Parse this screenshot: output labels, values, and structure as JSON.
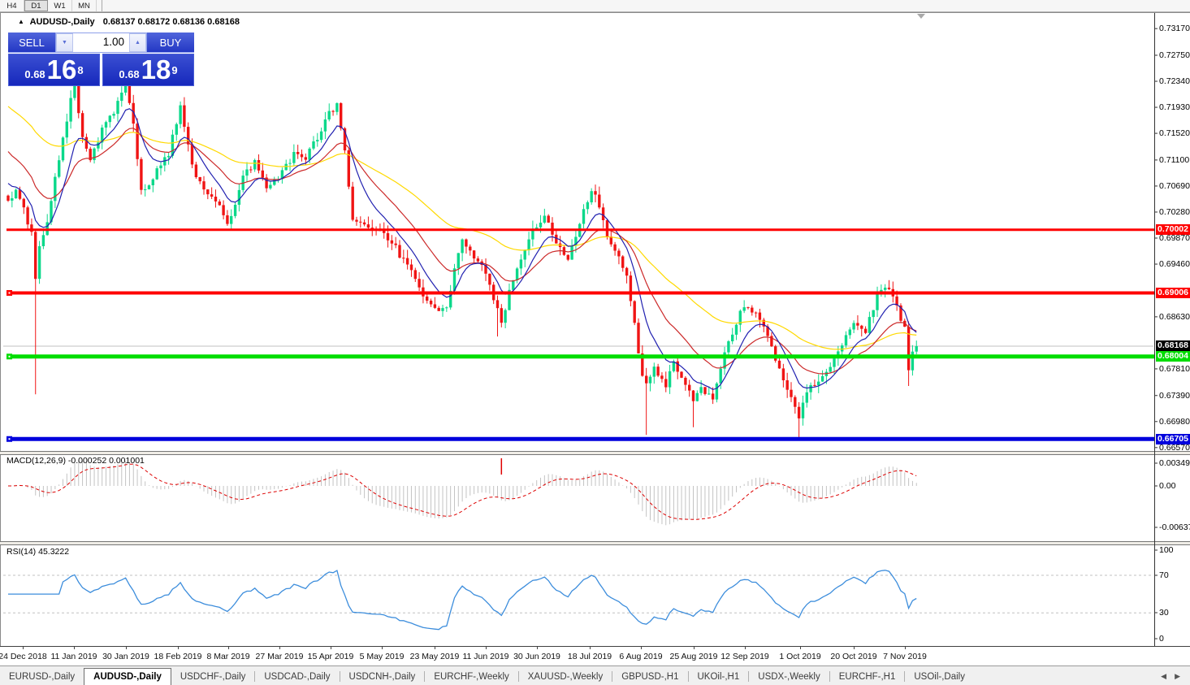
{
  "toolbar": {
    "periods": [
      "H4",
      "D1",
      "W1",
      "MN"
    ],
    "active_period": "D1"
  },
  "chart": {
    "symbol_line": {
      "title": "AUDUSD-,Daily",
      "ohlc": "0.68137 0.68172 0.68136 0.68168"
    },
    "trade_panel": {
      "sell_label": "SELL",
      "buy_label": "BUY",
      "volume": "1.00",
      "sell_price": {
        "prefix": "0.68",
        "big": "16",
        "sup": "8"
      },
      "buy_price": {
        "prefix": "0.68",
        "big": "18",
        "sup": "9"
      }
    }
  },
  "chart_data": {
    "type": "candlestick",
    "symbol": "AUDUSD",
    "timeframe": "Daily",
    "quote": {
      "open": 0.68137,
      "high": 0.68172,
      "low": 0.68136,
      "close": 0.68168
    },
    "candle_count": 233,
    "colors": {
      "bull": "#0bd88a",
      "bear": "#f01414",
      "current_line": "#c0c0c0"
    },
    "x_axis_dates": [
      "24 Dec 2018",
      "11 Jan 2019",
      "30 Jan 2019",
      "18 Feb 2019",
      "8 Mar 2019",
      "27 Mar 2019",
      "15 Apr 2019",
      "5 May 2019",
      "23 May 2019",
      "11 Jun 2019",
      "30 Jun 2019",
      "18 Jul 2019",
      "6 Aug 2019",
      "25 Aug 2019",
      "12 Sep 2019",
      "1 Oct 2019",
      "20 Oct 2019",
      "7 Nov 2019"
    ],
    "y_axis_ticks": [
      0.7317,
      0.7275,
      0.7234,
      0.7193,
      0.7152,
      0.711,
      0.7069,
      0.7028,
      0.6987,
      0.6946,
      0.6863,
      0.6781,
      0.6739,
      0.6698,
      0.6657
    ],
    "price_levels": [
      {
        "value": 0.70002,
        "color": "#ff0000",
        "width": 3,
        "handle": false
      },
      {
        "value": 0.69006,
        "color": "#ff0000",
        "width": 4,
        "handle": true
      },
      {
        "value": 0.68004,
        "color": "#00dd00",
        "width": 5,
        "handle": true
      },
      {
        "value": 0.66705,
        "color": "#0000dd",
        "width": 5,
        "handle": true
      }
    ],
    "current_price": 0.68168,
    "price_path": [
      [
        0,
        0.7046
      ],
      [
        2,
        0.7062
      ],
      [
        4,
        0.703
      ],
      [
        5,
        0.701
      ],
      [
        6,
        0.7
      ],
      [
        7,
        0.692
      ],
      [
        8,
        0.6975
      ],
      [
        10,
        0.701
      ],
      [
        12,
        0.7085
      ],
      [
        14,
        0.714
      ],
      [
        16,
        0.7205
      ],
      [
        17,
        0.7228
      ],
      [
        19,
        0.715
      ],
      [
        21,
        0.7108
      ],
      [
        24,
        0.716
      ],
      [
        27,
        0.7185
      ],
      [
        30,
        0.723
      ],
      [
        32,
        0.717
      ],
      [
        34,
        0.7062
      ],
      [
        36,
        0.707
      ],
      [
        38,
        0.7095
      ],
      [
        41,
        0.712
      ],
      [
        44,
        0.7195
      ],
      [
        46,
        0.713
      ],
      [
        48,
        0.7085
      ],
      [
        51,
        0.706
      ],
      [
        54,
        0.704
      ],
      [
        56,
        0.7012
      ],
      [
        58,
        0.704
      ],
      [
        60,
        0.7085
      ],
      [
        63,
        0.7105
      ],
      [
        66,
        0.7068
      ],
      [
        69,
        0.7082
      ],
      [
        73,
        0.712
      ],
      [
        76,
        0.7112
      ],
      [
        79,
        0.7145
      ],
      [
        82,
        0.7185
      ],
      [
        84,
        0.7195
      ],
      [
        86,
        0.712
      ],
      [
        88,
        0.702
      ],
      [
        91,
        0.7005
      ],
      [
        95,
        0.6995
      ],
      [
        98,
        0.6982
      ],
      [
        100,
        0.696
      ],
      [
        103,
        0.6938
      ],
      [
        106,
        0.6898
      ],
      [
        108,
        0.6878
      ],
      [
        110,
        0.6872
      ],
      [
        112,
        0.6882
      ],
      [
        114,
        0.6935
      ],
      [
        116,
        0.6988
      ],
      [
        119,
        0.6958
      ],
      [
        122,
        0.6933
      ],
      [
        125,
        0.6875
      ],
      [
        126,
        0.685
      ],
      [
        129,
        0.6925
      ],
      [
        133,
        0.6988
      ],
      [
        137,
        0.7025
      ],
      [
        140,
        0.698
      ],
      [
        143,
        0.6958
      ],
      [
        147,
        0.703
      ],
      [
        149,
        0.706
      ],
      [
        151,
        0.704
      ],
      [
        153,
        0.6985
      ],
      [
        156,
        0.6955
      ],
      [
        158,
        0.693
      ],
      [
        160,
        0.685
      ],
      [
        162,
        0.677
      ],
      [
        163,
        0.6762
      ],
      [
        165,
        0.678
      ],
      [
        168,
        0.6757
      ],
      [
        170,
        0.6788
      ],
      [
        172,
        0.6765
      ],
      [
        175,
        0.673
      ],
      [
        177,
        0.6748
      ],
      [
        180,
        0.6737
      ],
      [
        183,
        0.6805
      ],
      [
        186,
        0.6855
      ],
      [
        188,
        0.6882
      ],
      [
        191,
        0.6865
      ],
      [
        194,
        0.6838
      ],
      [
        196,
        0.6792
      ],
      [
        199,
        0.6752
      ],
      [
        202,
        0.6706
      ],
      [
        204,
        0.6742
      ],
      [
        206,
        0.676
      ],
      [
        209,
        0.6776
      ],
      [
        212,
        0.681
      ],
      [
        216,
        0.6855
      ],
      [
        219,
        0.6842
      ],
      [
        222,
        0.6895
      ],
      [
        224,
        0.6912
      ],
      [
        226,
        0.69
      ],
      [
        228,
        0.6862
      ],
      [
        229,
        0.6852
      ],
      [
        230,
        0.6775
      ],
      [
        231,
        0.6812
      ],
      [
        232,
        0.68168
      ]
    ],
    "special_lows": {
      "7": 0.6741,
      "125": 0.6832,
      "163": 0.6677,
      "175": 0.6689,
      "202": 0.667,
      "230": 0.6754
    },
    "moving_averages": [
      {
        "period": 55,
        "color": "#ffd900",
        "seed": 0.72
      },
      {
        "period": 21,
        "color": "#cc2a2a",
        "seed": 0.7131
      },
      {
        "period": 9,
        "color": "#2020b0",
        "seed": 0.708
      }
    ],
    "indicators": {
      "macd": {
        "label": "MACD(12,26,9)",
        "values": "-0.000252 0.001001",
        "axis": [
          "0.00349",
          "0.00",
          "-0.00637"
        ],
        "hist_color": "#c3c3c3",
        "signal_color": "#dd0000",
        "vline_index": 126
      },
      "rsi": {
        "label": "RSI(14)",
        "value": "45.3222",
        "axis": [
          "100",
          "70",
          "30",
          "0"
        ],
        "levels": [
          70,
          30
        ],
        "color": "#3c8ddc",
        "last_value": 45.3222
      }
    },
    "legend_position": "none",
    "grid": false
  },
  "tabs": {
    "items": [
      {
        "label": "EURUSD-,Daily",
        "active": false
      },
      {
        "label": "AUDUSD-,Daily",
        "active": true
      },
      {
        "label": "USDCHF-,Daily",
        "active": false
      },
      {
        "label": "USDCAD-,Daily",
        "active": false
      },
      {
        "label": "USDCNH-,Daily",
        "active": false
      },
      {
        "label": "EURCHF-,Weekly",
        "active": false
      },
      {
        "label": "XAUUSD-,Weekly",
        "active": false
      },
      {
        "label": "GBPUSD-,H1",
        "active": false
      },
      {
        "label": "UKOil-,H1",
        "active": false
      },
      {
        "label": "USDX-,Weekly",
        "active": false
      },
      {
        "label": "EURCHF-,H1",
        "active": false
      },
      {
        "label": "USOil-,Daily",
        "active": false
      }
    ]
  }
}
